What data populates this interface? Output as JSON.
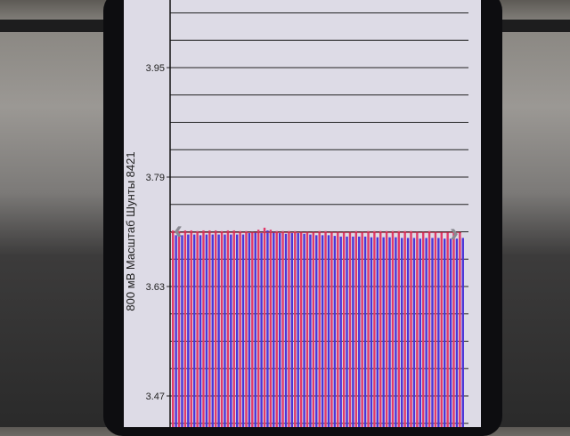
{
  "chart_data": {
    "type": "bar",
    "ylabel": "800 мВ Масштаб  Шунты 8421",
    "ylim": [
      3.39,
      4.03
    ],
    "yticks": [
      3.47,
      3.63,
      3.79,
      3.95
    ],
    "grid": true,
    "colors": {
      "red": "#e23a6a",
      "blue": "#4a35d8"
    },
    "series": [
      {
        "values": [
          3.712,
          3.711,
          3.712,
          3.712,
          3.711,
          3.712,
          3.712,
          3.712,
          3.711,
          3.712,
          3.712,
          3.711,
          3.711,
          3.71,
          3.713,
          3.716,
          3.713,
          3.711,
          3.711,
          3.711,
          3.711,
          3.71,
          3.71,
          3.71,
          3.711,
          3.711,
          3.71,
          3.71,
          3.71,
          3.71,
          3.711,
          3.71,
          3.711,
          3.711,
          3.711,
          3.711,
          3.711,
          3.711,
          3.711,
          3.711,
          3.71,
          3.71,
          3.711,
          3.71,
          3.709,
          3.709,
          3.709,
          3.709
        ]
      },
      {
        "values": [
          3.705,
          3.705,
          3.706,
          3.706,
          3.705,
          3.706,
          3.706,
          3.706,
          3.706,
          3.706,
          3.706,
          3.706,
          3.708,
          3.709,
          3.708,
          3.712,
          3.71,
          3.708,
          3.707,
          3.708,
          3.708,
          3.707,
          3.706,
          3.705,
          3.705,
          3.705,
          3.704,
          3.703,
          3.703,
          3.703,
          3.703,
          3.703,
          3.702,
          3.702,
          3.702,
          3.702,
          3.702,
          3.701,
          3.701,
          3.701,
          3.7,
          3.701,
          3.701,
          3.701,
          3.7,
          3.7,
          3.7,
          3.701
        ]
      }
    ]
  },
  "icons": {
    "left": "chevron-left-icon",
    "right": "chevron-right-icon"
  },
  "nav": {
    "prev": "‹",
    "next": "›"
  }
}
